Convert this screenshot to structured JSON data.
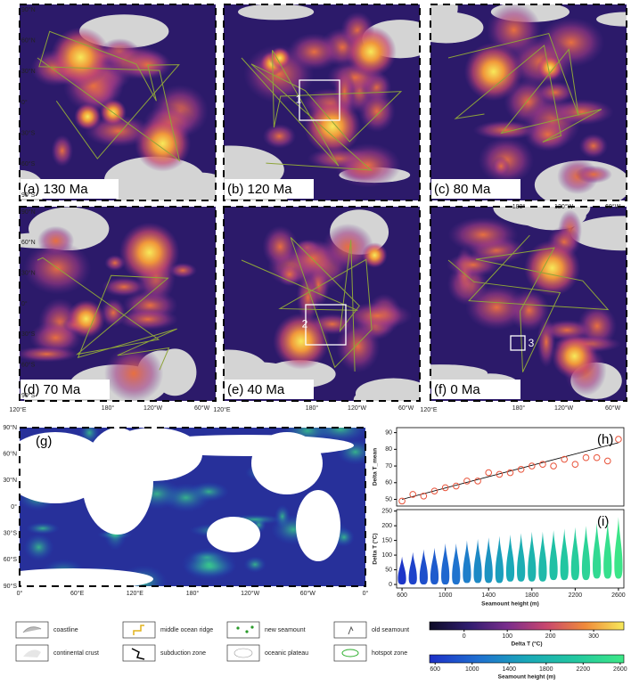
{
  "maps": {
    "lat_ticks": [
      "90°N",
      "60°N",
      "30°N",
      "0°",
      "30°S",
      "60°S",
      "90°S"
    ],
    "lon_ticks": [
      "180°",
      "120°W",
      "60°W"
    ],
    "lon_start": "120°E",
    "panels": [
      {
        "label": "(a) 130 Ma"
      },
      {
        "label": "(b) 120 Ma",
        "box": "1"
      },
      {
        "label": "(c) 80 Ma"
      },
      {
        "label": "(d) 70 Ma"
      },
      {
        "label": "(e) 40 Ma",
        "box": "2"
      },
      {
        "label": "(f) 0 Ma",
        "box": "3"
      }
    ]
  },
  "global_map": {
    "label": "(g)",
    "lon_ticks": [
      "0°",
      "60°E",
      "120°E",
      "180°",
      "120°W",
      "60°W",
      "0°"
    ]
  },
  "chart_data": [
    {
      "type": "scatter",
      "label": "(h)",
      "y_label": "Delta T_mean",
      "color": "#e8533a",
      "x": [
        600,
        700,
        800,
        900,
        1000,
        1100,
        1200,
        1300,
        1400,
        1500,
        1600,
        1700,
        1800,
        1900,
        2000,
        2100,
        2200,
        2300,
        2400,
        2500,
        2600
      ],
      "values": [
        49,
        53,
        52,
        55,
        57,
        58,
        61,
        61,
        66,
        65,
        66,
        68,
        70,
        71,
        70,
        74,
        71,
        75,
        75,
        73,
        86
      ],
      "fit": {
        "x": [
          600,
          2600
        ],
        "values": [
          50,
          84
        ]
      },
      "xlim": [
        550,
        2650
      ],
      "ylim": [
        46,
        93
      ],
      "yticks": [
        50,
        60,
        70,
        80,
        90
      ]
    },
    {
      "type": "violin",
      "label": "(i)",
      "y_label": "Delta T (°C)",
      "x_label": "Seamount height (m)",
      "x": [
        600,
        700,
        800,
        900,
        1000,
        1100,
        1200,
        1300,
        1400,
        1500,
        1600,
        1700,
        1800,
        1900,
        2000,
        2100,
        2200,
        2300,
        2400,
        2500,
        2600
      ],
      "ranges": [
        [
          0,
          95
        ],
        [
          0,
          110
        ],
        [
          0,
          120
        ],
        [
          0,
          125
        ],
        [
          0,
          140
        ],
        [
          0,
          140
        ],
        [
          5,
          150
        ],
        [
          5,
          155
        ],
        [
          5,
          160
        ],
        [
          5,
          165
        ],
        [
          10,
          170
        ],
        [
          10,
          175
        ],
        [
          10,
          180
        ],
        [
          10,
          180
        ],
        [
          15,
          185
        ],
        [
          15,
          190
        ],
        [
          15,
          195
        ],
        [
          15,
          200
        ],
        [
          20,
          210
        ],
        [
          20,
          215
        ],
        [
          20,
          230
        ]
      ],
      "xlim": [
        550,
        2650
      ],
      "ylim": [
        -12,
        255
      ],
      "xticks": [
        600,
        1000,
        1400,
        1800,
        2200,
        2600
      ],
      "yticks": [
        0,
        50,
        100,
        150,
        200,
        250
      ]
    }
  ],
  "legend": {
    "items": [
      {
        "label": "coastline"
      },
      {
        "label": "middle ocean ridge"
      },
      {
        "label": "new seamount"
      },
      {
        "label": "old seamount"
      },
      {
        "label": "continental crust"
      },
      {
        "label": "subduction zone"
      },
      {
        "label": "oceanic plateau"
      },
      {
        "label": "hotspot zone"
      }
    ],
    "colorbars": [
      {
        "title": "Delta T (°C)",
        "lim": [
          -80,
          370
        ],
        "ticks": [
          0,
          100,
          200,
          300
        ],
        "colors": [
          "#0d0b26",
          "#2f1d6e",
          "#7a2d8c",
          "#c8476e",
          "#f08a3a",
          "#f7e95a"
        ]
      },
      {
        "title": "Seamount height (m)",
        "lim": [
          540,
          2640
        ],
        "ticks": [
          600,
          1000,
          1400,
          1800,
          2200,
          2600
        ],
        "colors": [
          "#1d2fc7",
          "#1f6fd0",
          "#1aa8b8",
          "#22c7a0",
          "#3de886"
        ]
      }
    ]
  }
}
